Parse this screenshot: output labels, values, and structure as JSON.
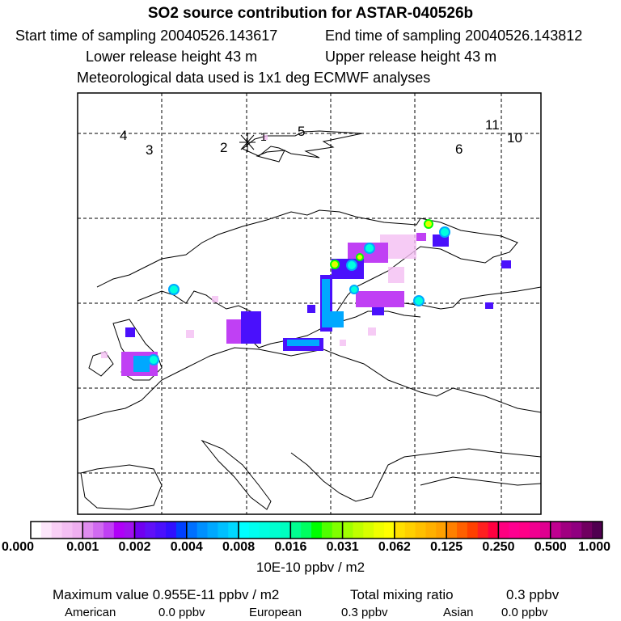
{
  "header": {
    "title": "SO2 source contribution for ASTAR-040526b",
    "start_label": "Start time of sampling 20040526.143617",
    "end_label": "End time of sampling 20040526.143812",
    "lower_label": "Lower release height   43 m",
    "upper_label": "Upper release height   43 m",
    "met_label": "Meteorological data used is 1x1 deg ECMWF analyses"
  },
  "chart_data": {
    "type": "heatmap",
    "title": "SO2 source contribution for ASTAR-040526b",
    "colorbar": {
      "unit_label": "10E-10 ppbv / m2",
      "ticks": [
        "0.000",
        "0.001",
        "0.002",
        "0.004",
        "0.008",
        "0.016",
        "0.031",
        "0.062",
        "0.125",
        "0.250",
        "0.500",
        "1.000"
      ],
      "colors": [
        "#f5d8f5",
        "#c040f4",
        "#4a10fc",
        "#00a8ff",
        "#00ffe0",
        "#00ff00",
        "#e0ff00",
        "#ffc000",
        "#ff4000",
        "#ff0088",
        "#900080"
      ]
    },
    "map_markers": [
      "1",
      "2",
      "3",
      "4",
      "5",
      "6",
      "10",
      "11"
    ],
    "grid": true
  },
  "footer": {
    "max_label": "Maximum value  0.955E-11 ppbv / m2",
    "total_label": "Total mixing ratio",
    "total_value": "0.3 ppbv",
    "american_label": "American",
    "american_value": "0.0 ppbv",
    "european_label": "European",
    "european_value": "0.3 ppbv",
    "asian_label": "Asian",
    "asian_value": "0.0 ppbv"
  }
}
